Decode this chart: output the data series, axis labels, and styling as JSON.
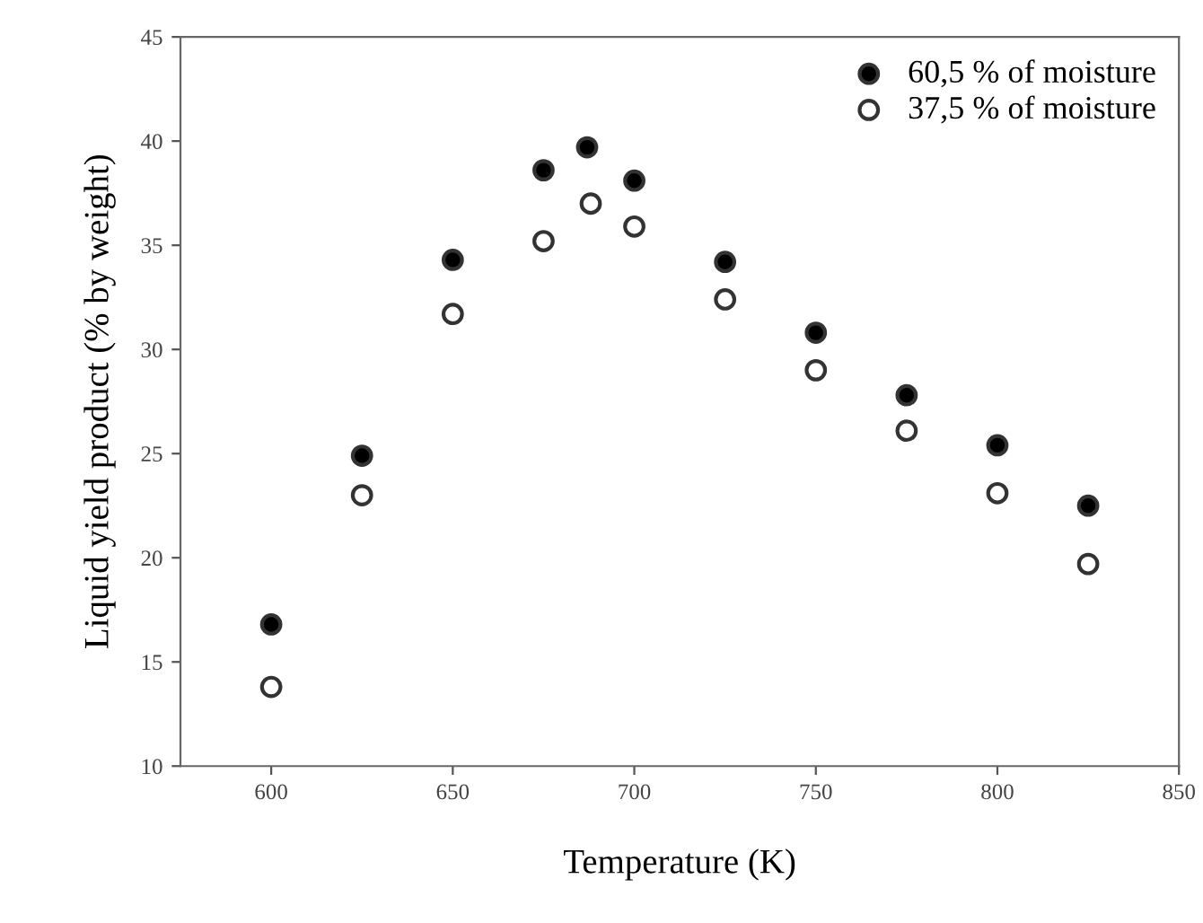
{
  "chart_data": {
    "type": "scatter",
    "xlabel": "Temperature (K)",
    "ylabel": "Liquid yield product (% by weight)",
    "xlim": [
      575,
      850
    ],
    "xticks": [
      600,
      650,
      700,
      750,
      800,
      850
    ],
    "ylim": [
      10,
      45
    ],
    "yticks": [
      10,
      15,
      20,
      25,
      30,
      35,
      40,
      45
    ],
    "grid": false,
    "legend": "top right",
    "marker": "circle",
    "series": [
      {
        "name": "60,5 % of moisture",
        "color": "#000000",
        "x": [
          600,
          625,
          650,
          675,
          687,
          700,
          725,
          750,
          775,
          800,
          825
        ],
        "values": [
          16.8,
          24.9,
          34.3,
          38.6,
          39.7,
          38.1,
          34.2,
          30.8,
          27.8,
          25.4,
          22.5
        ]
      },
      {
        "name": "37,5 % of moisture",
        "color": "#ffffff",
        "x": [
          600,
          625,
          650,
          675,
          688,
          700,
          725,
          750,
          775,
          800,
          825
        ],
        "values": [
          13.8,
          23.0,
          31.7,
          35.2,
          37.0,
          35.9,
          32.4,
          29.0,
          26.1,
          23.1,
          19.7
        ]
      }
    ]
  }
}
